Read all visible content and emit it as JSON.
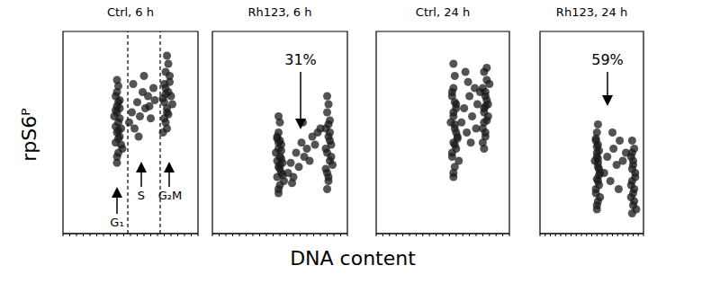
{
  "xlabel": "DNA content",
  "ylabel": "rpS6ᴾ",
  "chart_data": [
    {
      "type": "scatter",
      "title": "Ctrl, 6 h",
      "color": "#1a1a1a",
      "marker": "dot",
      "xlim": [
        0,
        100
      ],
      "ylim": [
        0,
        100
      ],
      "xticks": [
        0,
        5,
        10,
        15,
        20,
        25,
        30,
        35,
        40,
        45,
        50,
        55,
        60,
        65,
        70,
        75,
        80,
        85,
        90,
        95,
        100
      ],
      "tick_labels": false,
      "gate_lines": [
        48,
        72
      ],
      "annotations": [
        "G₁",
        "S",
        "G₂M"
      ],
      "x": [
        40,
        41,
        39,
        42,
        40,
        43,
        41,
        38,
        40,
        42,
        41,
        39,
        40,
        44,
        41,
        42,
        40,
        39,
        41,
        43,
        40,
        42,
        41,
        39,
        40,
        49,
        51,
        53,
        55,
        57,
        59,
        61,
        63,
        65,
        67,
        52,
        56,
        60,
        64,
        68,
        74,
        76,
        77,
        75,
        78,
        79,
        76,
        77,
        80,
        75,
        78,
        76,
        77,
        79,
        74,
        81,
        77,
        75,
        78,
        76
      ],
      "values": [
        35,
        40,
        45,
        48,
        50,
        52,
        55,
        58,
        60,
        62,
        65,
        68,
        70,
        42,
        47,
        57,
        63,
        53,
        73,
        44,
        38,
        66,
        51,
        61,
        76,
        55,
        60,
        52,
        65,
        58,
        70,
        62,
        68,
        57,
        72,
        74,
        48,
        78,
        63,
        66,
        50,
        55,
        60,
        65,
        70,
        75,
        80,
        62,
        68,
        57,
        84,
        72,
        52,
        78,
        67,
        64,
        88,
        74,
        59,
        69
      ]
    },
    {
      "type": "scatter",
      "title": "Rh123, 6 h",
      "color": "#1a1a1a",
      "marker": "dot",
      "xlim": [
        0,
        100
      ],
      "ylim": [
        0,
        100
      ],
      "xticks": [
        0,
        5,
        10,
        15,
        20,
        25,
        30,
        35,
        40,
        45,
        50,
        55,
        60,
        65,
        70,
        75,
        80,
        85,
        90,
        95,
        100
      ],
      "tick_labels": false,
      "annotations": [
        "31%"
      ],
      "x": [
        49,
        50,
        48,
        51,
        49,
        52,
        50,
        47,
        49,
        51,
        50,
        48,
        49,
        53,
        50,
        51,
        49,
        48,
        50,
        52,
        49,
        51,
        50,
        48,
        49,
        56,
        58,
        60,
        62,
        64,
        66,
        68,
        70,
        72,
        74,
        76,
        78,
        80,
        59,
        67,
        85,
        86,
        84,
        87,
        85,
        88,
        86,
        84,
        87,
        85,
        86,
        88,
        85,
        87,
        84,
        86,
        89,
        85,
        87,
        86
      ],
      "values": [
        20,
        24,
        28,
        30,
        33,
        35,
        38,
        40,
        42,
        44,
        46,
        48,
        50,
        26,
        32,
        37,
        45,
        36,
        55,
        29,
        22,
        41,
        34,
        47,
        58,
        30,
        35,
        28,
        40,
        33,
        45,
        38,
        42,
        36,
        48,
        44,
        50,
        52,
        25,
        55,
        22,
        28,
        32,
        36,
        40,
        44,
        48,
        52,
        56,
        60,
        64,
        38,
        30,
        46,
        42,
        54,
        34,
        68,
        50,
        26
      ]
    },
    {
      "type": "scatter",
      "title": "Ctrl, 24 h",
      "color": "#1a1a1a",
      "marker": "dot",
      "xlim": [
        0,
        100
      ],
      "ylim": [
        0,
        100
      ],
      "xticks": [
        0,
        5,
        10,
        15,
        20,
        25,
        30,
        35,
        40,
        45,
        50,
        55,
        60,
        65,
        70,
        75,
        80,
        85,
        90,
        95,
        100
      ],
      "tick_labels": false,
      "x": [
        58,
        59,
        57,
        60,
        58,
        61,
        59,
        56,
        58,
        60,
        59,
        57,
        58,
        62,
        59,
        60,
        58,
        57,
        59,
        61,
        58,
        60,
        59,
        57,
        58,
        64,
        66,
        68,
        70,
        72,
        74,
        76,
        78,
        67,
        71,
        75,
        69,
        81,
        82,
        80,
        83,
        81,
        84,
        82,
        80,
        83,
        81,
        82,
        84,
        81,
        83,
        80,
        82,
        85,
        81,
        83,
        82
      ],
      "values": [
        28,
        33,
        38,
        42,
        45,
        48,
        52,
        55,
        58,
        62,
        65,
        68,
        72,
        36,
        44,
        50,
        60,
        40,
        78,
        47,
        30,
        64,
        54,
        70,
        84,
        55,
        62,
        50,
        68,
        58,
        72,
        64,
        70,
        80,
        45,
        52,
        75,
        42,
        48,
        52,
        56,
        60,
        64,
        68,
        72,
        76,
        80,
        50,
        58,
        62,
        66,
        45,
        70,
        74,
        55,
        82,
        63
      ]
    },
    {
      "type": "scatter",
      "title": "Rh123, 24 h",
      "color": "#1a1a1a",
      "marker": "dot",
      "xlim": [
        0,
        100
      ],
      "ylim": [
        0,
        100
      ],
      "xticks": [
        0,
        5,
        10,
        15,
        20,
        25,
        30,
        35,
        40,
        45,
        50,
        55,
        60,
        65,
        70,
        75,
        80,
        85,
        90,
        95,
        100
      ],
      "tick_labels": false,
      "annotations": [
        "59%"
      ],
      "x": [
        55,
        56,
        54,
        57,
        55,
        58,
        56,
        53,
        55,
        57,
        56,
        54,
        55,
        58,
        56,
        57,
        55,
        54,
        56,
        57,
        55,
        56,
        55,
        54,
        56,
        62,
        65,
        68,
        71,
        74,
        77,
        80,
        83,
        70,
        76,
        89,
        90,
        88,
        91,
        89,
        92,
        90,
        88,
        91,
        89,
        90,
        92,
        89,
        91,
        88,
        90,
        93,
        89
      ],
      "values": [
        12,
        16,
        20,
        24,
        27,
        30,
        33,
        36,
        38,
        41,
        44,
        47,
        50,
        18,
        26,
        32,
        40,
        22,
        54,
        29,
        14,
        35,
        43,
        46,
        37,
        30,
        38,
        26,
        42,
        34,
        46,
        36,
        40,
        50,
        22,
        10,
        14,
        18,
        22,
        26,
        30,
        34,
        38,
        42,
        46,
        20,
        28,
        32,
        16,
        24,
        36,
        12,
        40
      ]
    }
  ]
}
